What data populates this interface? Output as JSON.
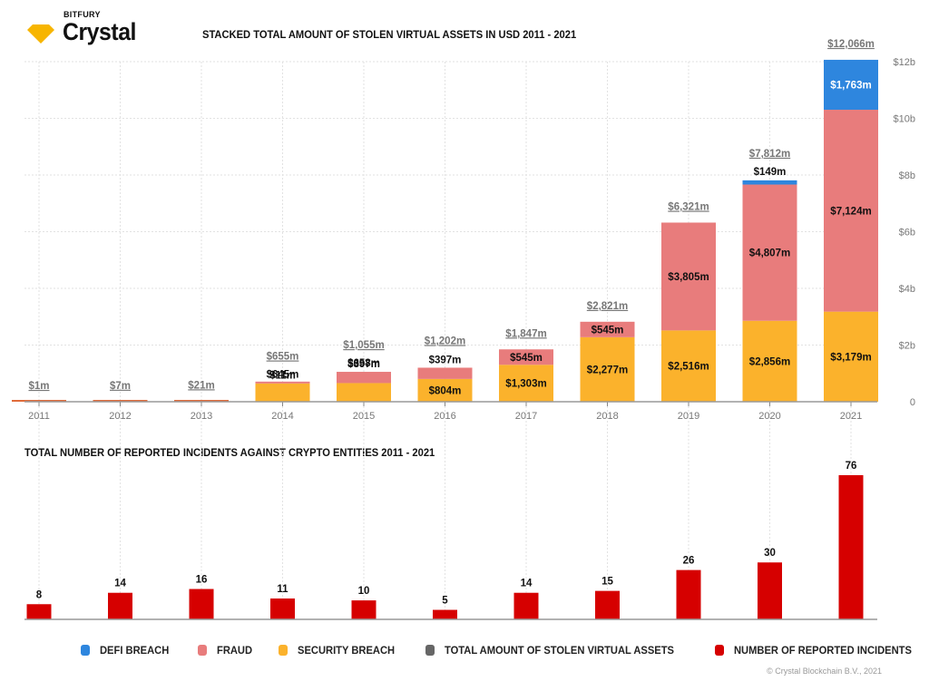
{
  "logo": {
    "company": "BITFURY",
    "product": "Crystal",
    "color": "#F7B500"
  },
  "copyright": "© Crystal Blockchain B.V., 2021",
  "legend": [
    {
      "name": "DEFI BREACH",
      "color": "#2E86DE"
    },
    {
      "name": "FRAUD",
      "color": "#E87C7C"
    },
    {
      "name": "SECURITY BREACH",
      "color": "#FBB22C"
    },
    {
      "name": "TOTAL AMOUNT OF STOLEN VIRTUAL ASSETS",
      "color": "#666666"
    },
    {
      "name": "NUMBER OF REPORTED INCIDENTS",
      "color": "#D60000"
    }
  ],
  "chart_data": [
    {
      "type": "bar",
      "stacked": true,
      "title": "STACKED TOTAL AMOUNT OF STOLEN VIRTUAL ASSETS IN USD 2011 - 2021",
      "categories": [
        "2011",
        "2012",
        "2013",
        "2014",
        "2015",
        "2016",
        "2017",
        "2018",
        "2019",
        "2020",
        "2021"
      ],
      "unit": "USD millions",
      "ylim": [
        0,
        12000
      ],
      "yticks": [
        0,
        2000,
        4000,
        6000,
        8000,
        10000,
        12000
      ],
      "ytick_labels": [
        "0",
        "$2b",
        "$4b",
        "$6b",
        "$8b",
        "$10b",
        "$12b"
      ],
      "y_axis_side": "right",
      "grid": true,
      "series": [
        {
          "name": "SECURITY BREACH",
          "color": "#FBB22C",
          "values": [
            1,
            7,
            21,
            645,
            658,
            804,
            1303,
            2277,
            2516,
            2856,
            3179
          ],
          "labels": [
            "",
            "",
            "",
            "$645m",
            "$658m",
            "$804m",
            "$1,303m",
            "$2,277m",
            "$2,516m",
            "$2,856m",
            "$3,179m"
          ]
        },
        {
          "name": "FRAUD",
          "color": "#E87C7C",
          "values": [
            0,
            0,
            0,
            11,
            397,
            397,
            545,
            545,
            3805,
            4807,
            7124
          ],
          "labels": [
            "",
            "",
            "",
            "$11m",
            "$397m",
            "$397m",
            "$545m",
            "$545m",
            "$3,805m",
            "$4,807m",
            "$7,124m"
          ]
        },
        {
          "name": "DEFI BREACH",
          "color": "#2E86DE",
          "values": [
            0,
            0,
            0,
            0,
            0,
            0,
            0,
            0,
            0,
            149,
            1763
          ],
          "labels": [
            "",
            "",
            "",
            "",
            "",
            "",
            "",
            "",
            "",
            "$149m",
            "$1,763m"
          ]
        }
      ],
      "totals": [
        1,
        7,
        21,
        655,
        1055,
        1202,
        1847,
        2821,
        6321,
        7812,
        12066
      ],
      "total_labels": [
        "$1m",
        "$7m",
        "$21m",
        "$655m",
        "$1,055m",
        "$1,202m",
        "$1,847m",
        "$2,821m",
        "$6,321m",
        "$7,812m",
        "$12,066m"
      ],
      "xlabel": "",
      "ylabel": ""
    },
    {
      "type": "bar",
      "title": "TOTAL NUMBER OF REPORTED INCIDENTS AGAINST CRYPTO ENTITIES 2011 - 2021",
      "categories": [
        "2011",
        "2012",
        "2013",
        "2014",
        "2015",
        "2016",
        "2017",
        "2018",
        "2019",
        "2020",
        "2021"
      ],
      "series": [
        {
          "name": "NUMBER OF REPORTED INCIDENTS",
          "color": "#D60000",
          "values": [
            8,
            14,
            16,
            11,
            10,
            5,
            14,
            15,
            26,
            30,
            76
          ]
        }
      ],
      "ylim": [
        0,
        80
      ],
      "grid": true,
      "xlabel": "",
      "ylabel": ""
    }
  ]
}
